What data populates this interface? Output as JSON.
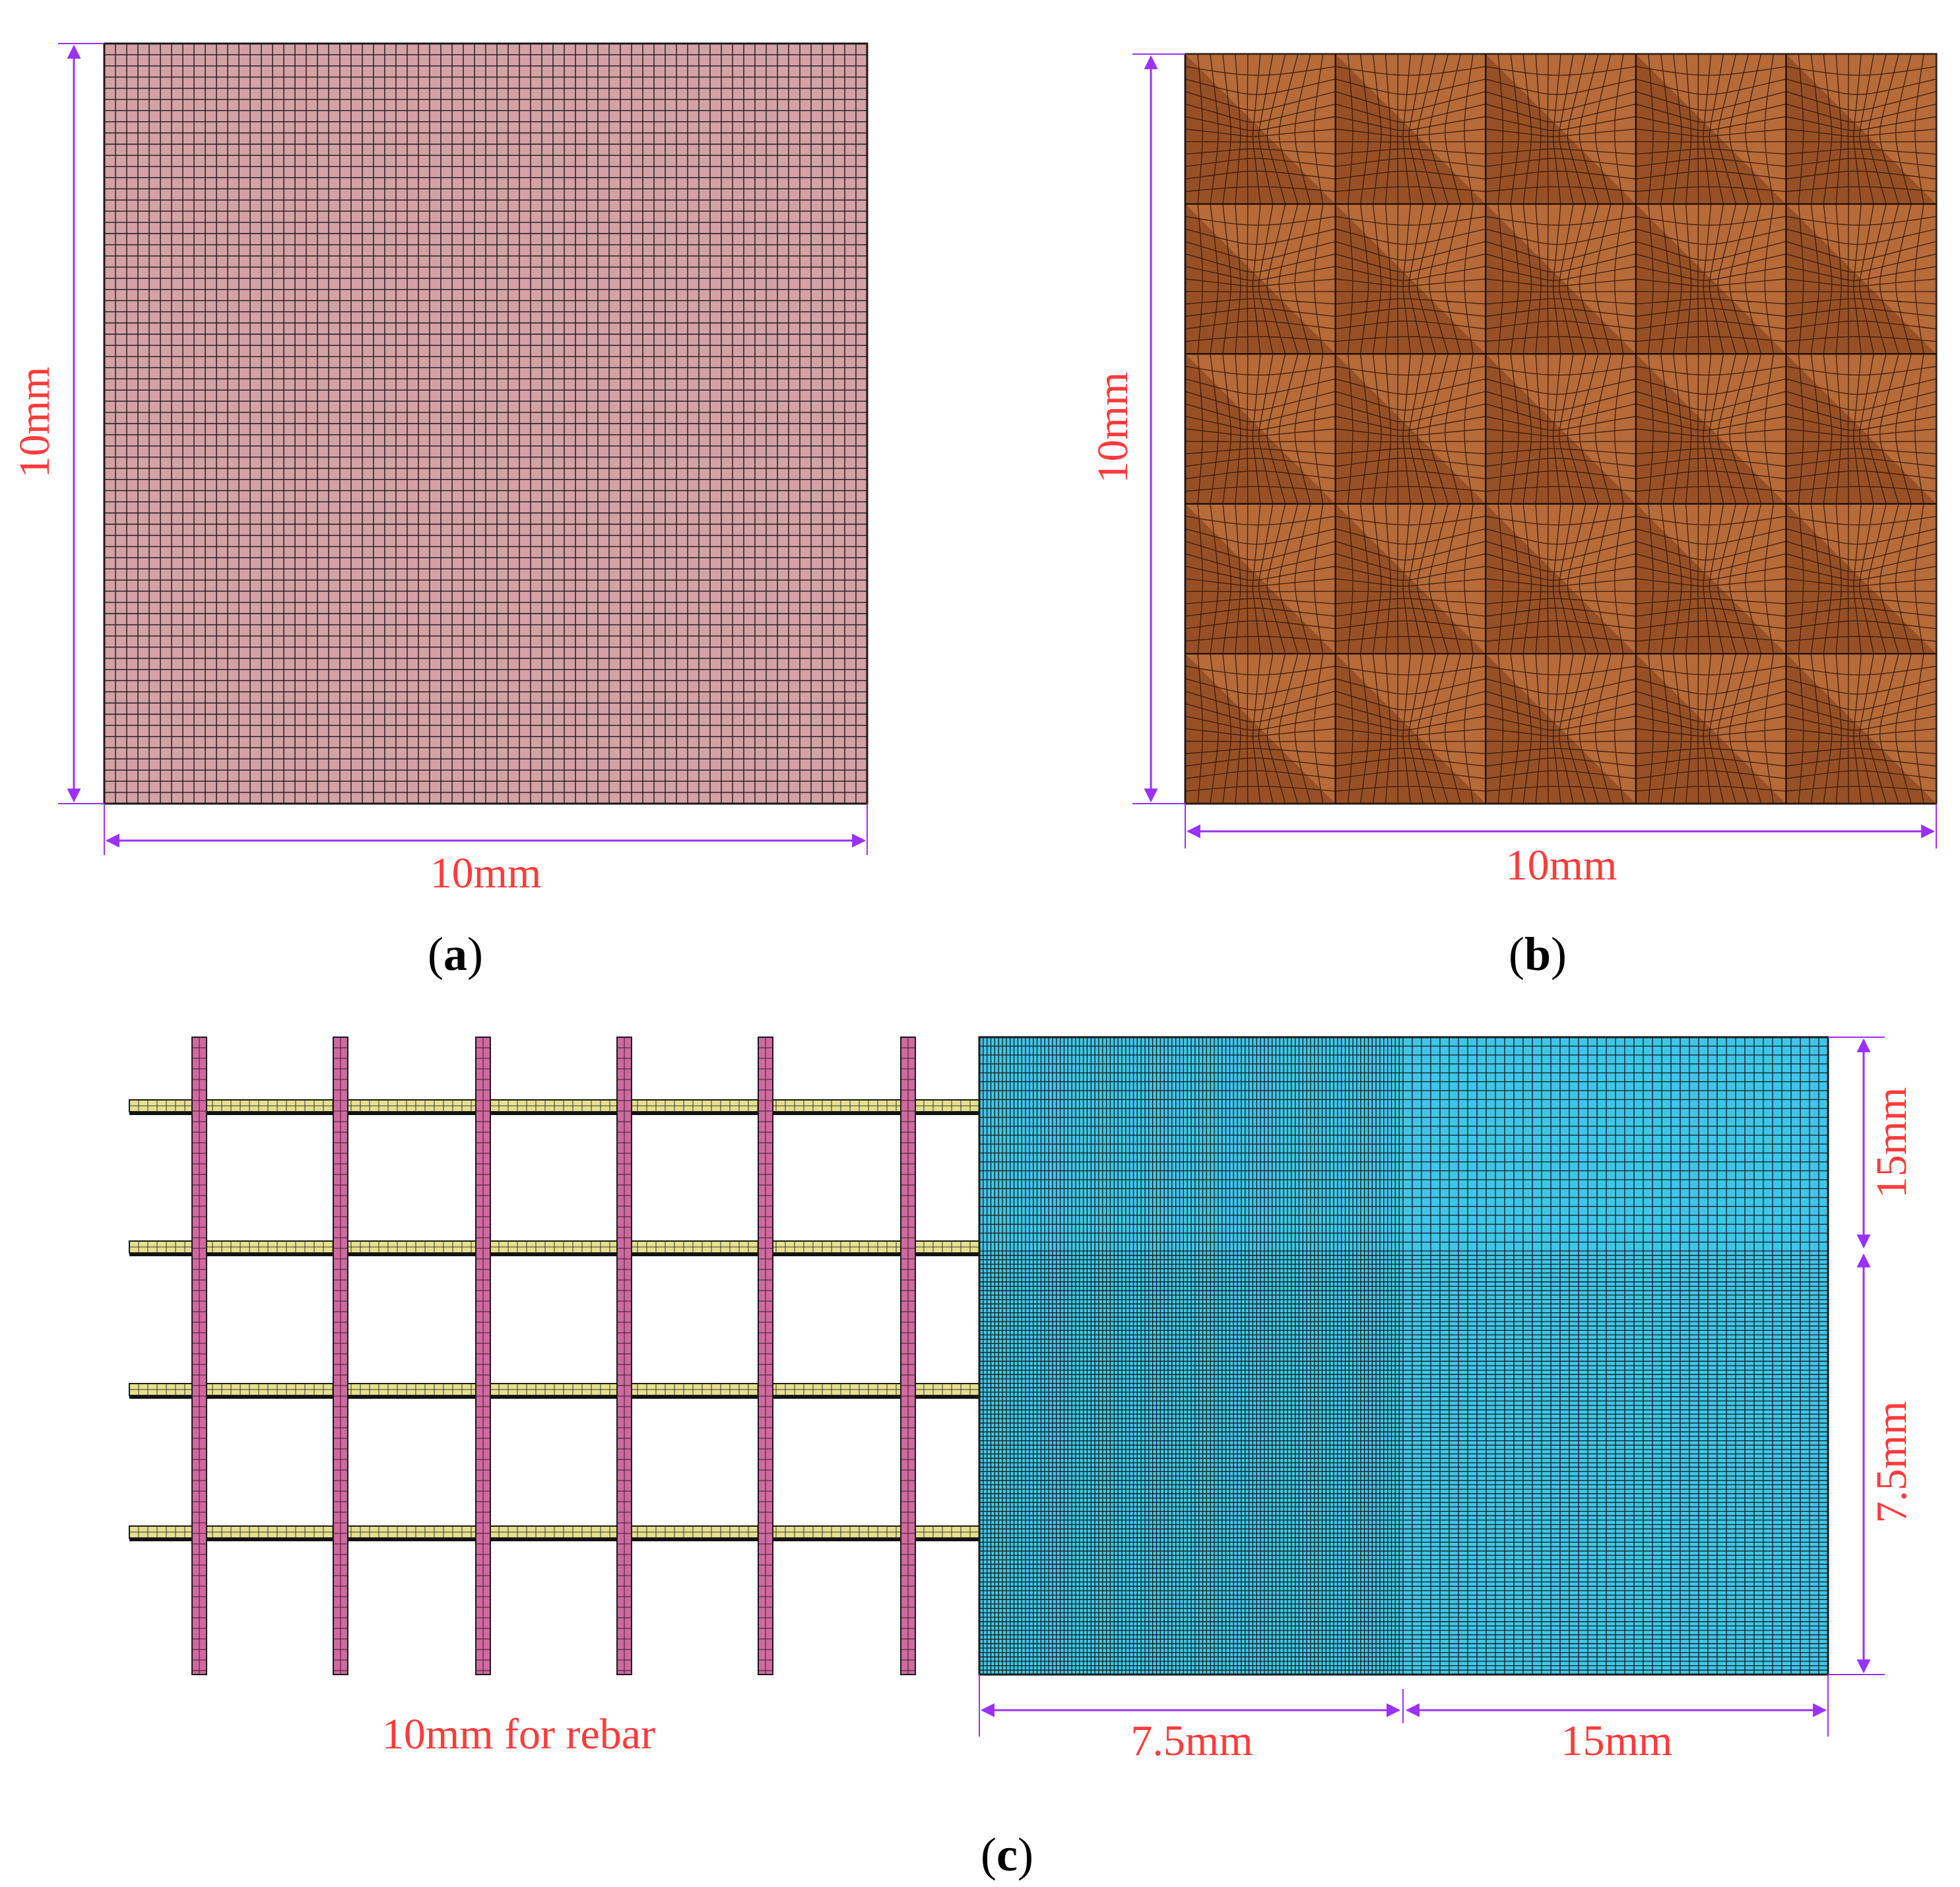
{
  "panel_a": {
    "caption_letter": "a",
    "dim_height_label": "10mm",
    "dim_width_label": "10mm",
    "fill_color": "#d4a1a4"
  },
  "panel_b": {
    "caption_letter": "b",
    "dim_height_label": "10mm",
    "dim_width_label": "10mm",
    "fill_color": "#a55a2b",
    "highlight_color": "#c47a45",
    "shadow_color": "#7f3f1a"
  },
  "panel_c": {
    "caption_letter": "c",
    "rebar_label": "10mm for rebar",
    "dim_right_top_label": "15mm",
    "dim_right_bottom_label": "7.5mm",
    "dim_bottom_left_label": "7.5mm",
    "dim_bottom_right_label": "15mm",
    "concrete_color": "#3ec6ea",
    "rebar_vertical_color": "#cf6aa0",
    "rebar_horizontal_color": "#e6e08c"
  },
  "colors": {
    "dimension_line": "#9b30ff",
    "dimension_text": "#ff3b3b",
    "mesh_line": "#1a1a1a"
  }
}
